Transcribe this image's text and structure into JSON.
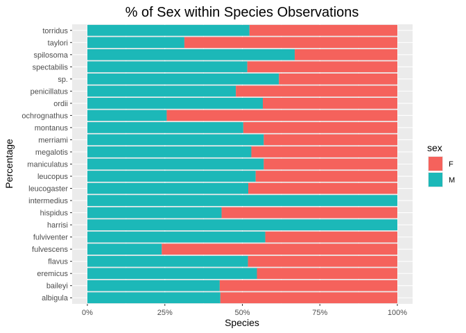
{
  "chart_data": {
    "type": "bar",
    "orientation": "horizontal",
    "stacked": true,
    "title": "% of Sex within Species Observations",
    "xlabel": "Species",
    "ylabel": "Percentage",
    "xlim": [
      0,
      1
    ],
    "x_ticks": [
      {
        "value": 0,
        "label": "0%"
      },
      {
        "value": 0.25,
        "label": "25%"
      },
      {
        "value": 0.5,
        "label": "50%"
      },
      {
        "value": 0.75,
        "label": "75%"
      },
      {
        "value": 1,
        "label": "100%"
      }
    ],
    "grid": true,
    "legend": {
      "title": "sex",
      "position": "right"
    },
    "categories": [
      "torridus",
      "taylori",
      "spilosoma",
      "spectabilis",
      "sp.",
      "penicillatus",
      "ordii",
      "ochrognathus",
      "montanus",
      "merriami",
      "megalotis",
      "maniculatus",
      "leucopus",
      "leucogaster",
      "intermedius",
      "hispidus",
      "harrisi",
      "fulviventer",
      "fulvescens",
      "flavus",
      "eremicus",
      "baileyi",
      "albigula"
    ],
    "series": [
      {
        "name": "M",
        "color": "#1cb8b8",
        "values": [
          0.523,
          0.313,
          0.669,
          0.516,
          0.618,
          0.479,
          0.566,
          0.256,
          0.503,
          0.569,
          0.529,
          0.569,
          0.543,
          0.519,
          1.0,
          0.433,
          1.0,
          0.574,
          0.24,
          0.518,
          0.547,
          0.427,
          0.429
        ]
      },
      {
        "name": "F",
        "color": "#f5625c",
        "values": [
          0.477,
          0.687,
          0.331,
          0.484,
          0.382,
          0.521,
          0.434,
          0.744,
          0.497,
          0.431,
          0.471,
          0.431,
          0.457,
          0.481,
          0.0,
          0.567,
          0.0,
          0.426,
          0.76,
          0.482,
          0.453,
          0.573,
          0.571
        ]
      }
    ]
  }
}
